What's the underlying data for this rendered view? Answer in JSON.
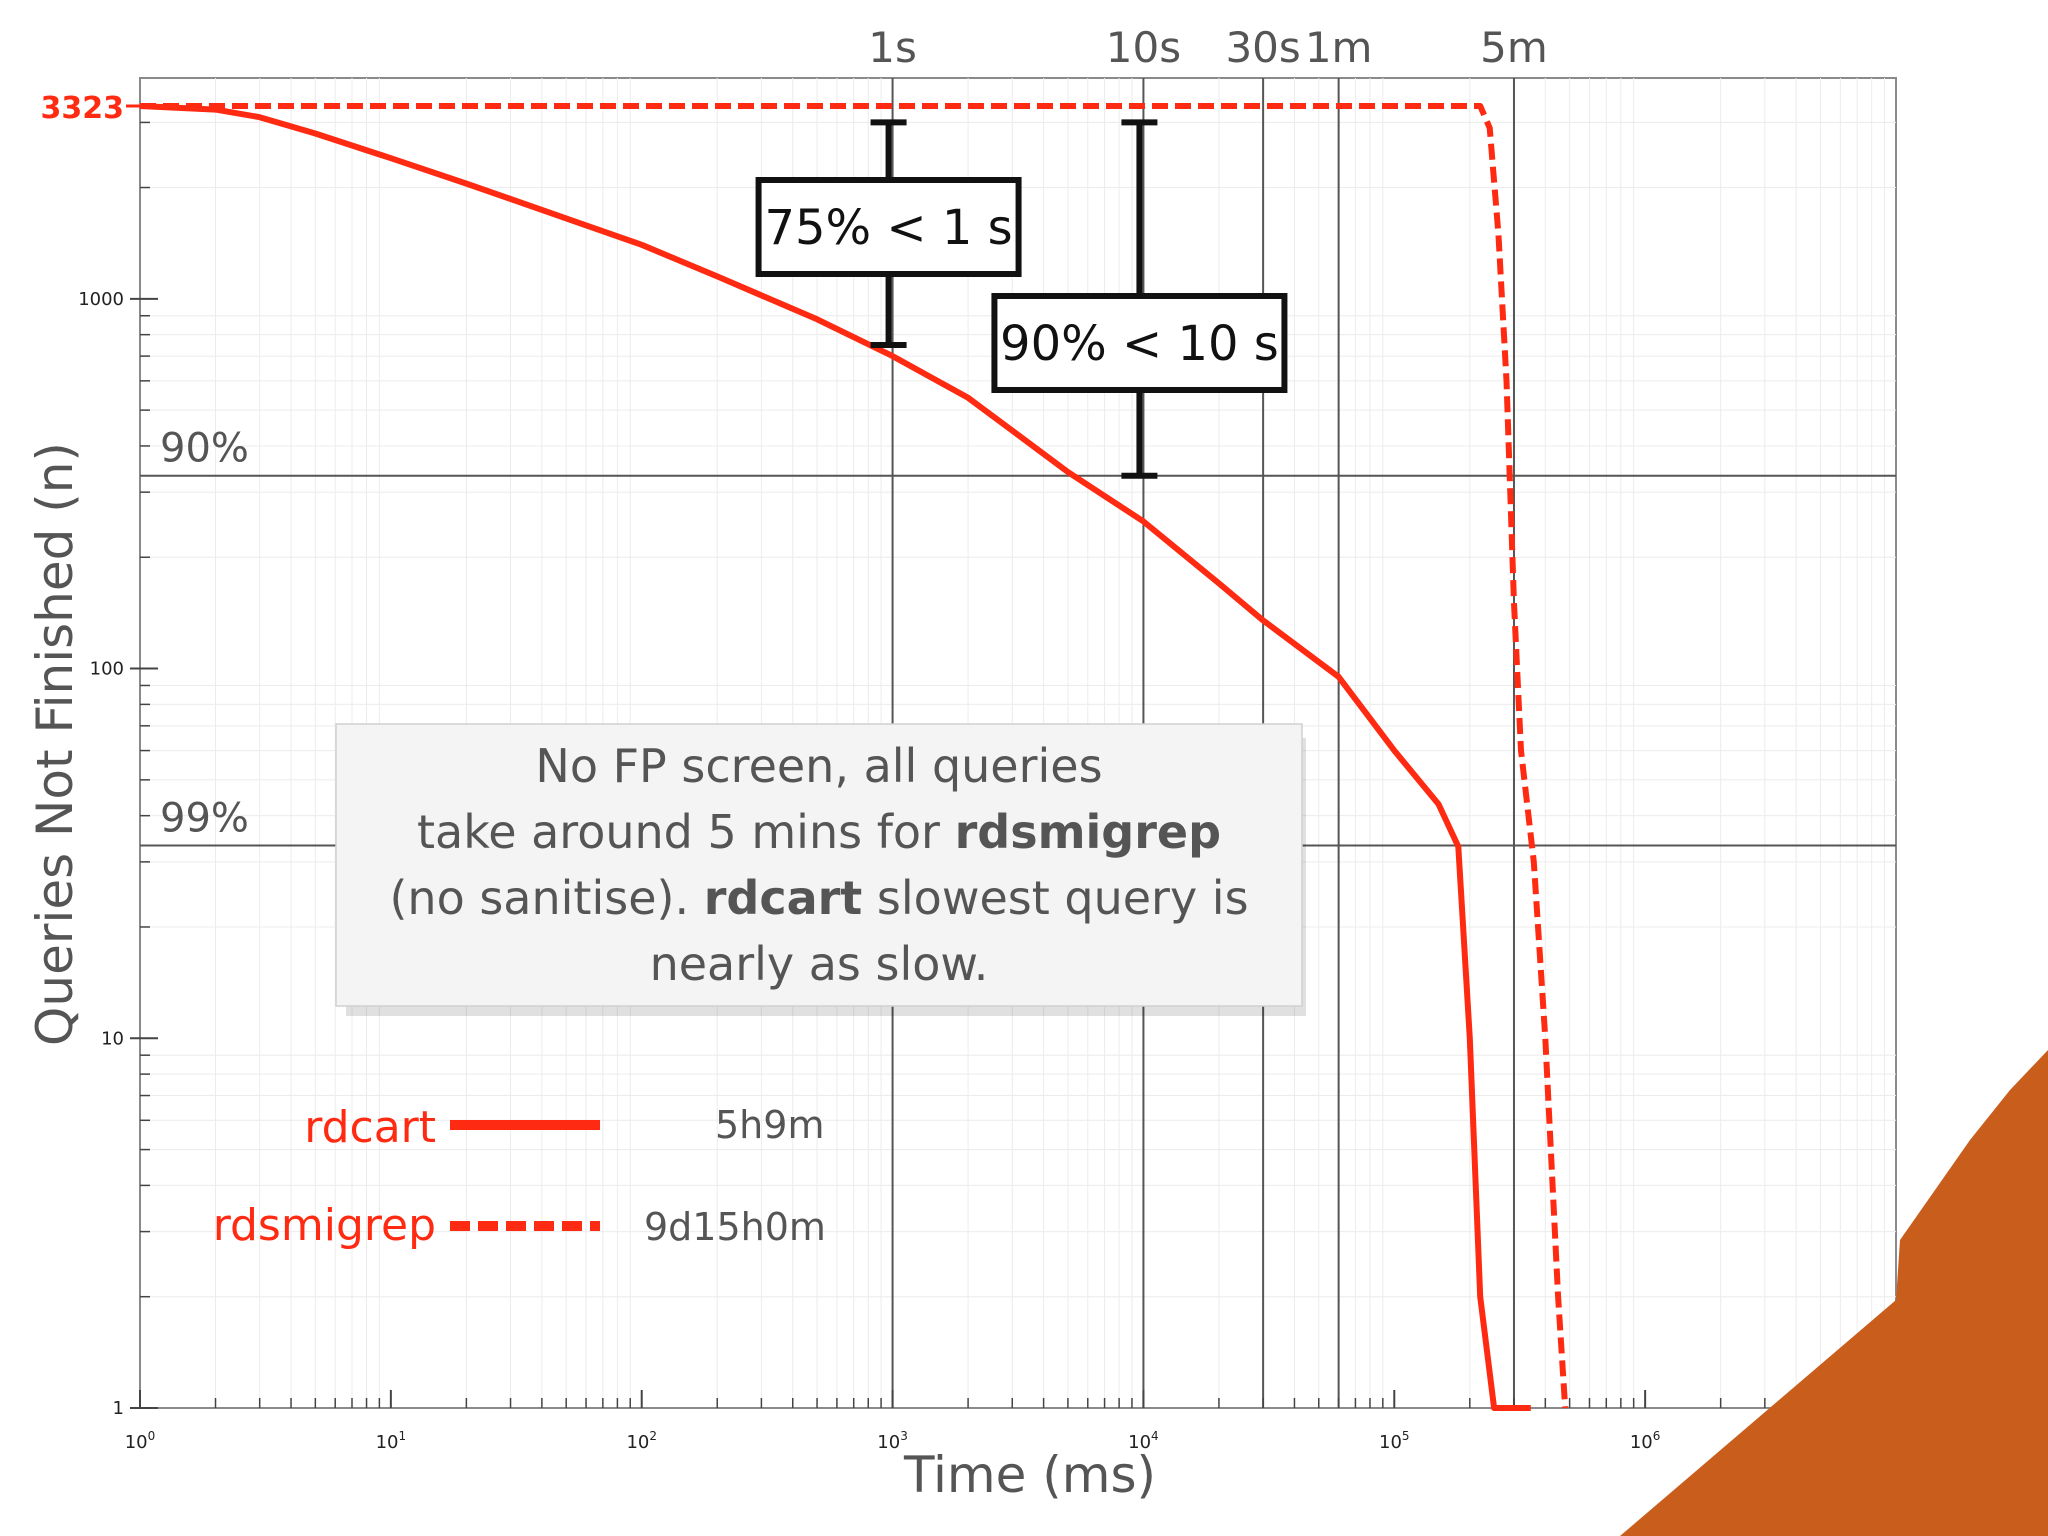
{
  "chart_data": {
    "type": "line",
    "xlabel": "Time (ms)",
    "ylabel": "Queries Not Finished (n)",
    "x_scale": "log",
    "y_scale": "log",
    "xlim": [
      1,
      10000000
    ],
    "ylim": [
      1,
      3323
    ],
    "x_ticks": [
      {
        "value": 1,
        "base": "10",
        "exp": "0"
      },
      {
        "value": 10,
        "base": "10",
        "exp": "1"
      },
      {
        "value": 100,
        "base": "10",
        "exp": "2"
      },
      {
        "value": 1000,
        "base": "10",
        "exp": "3"
      },
      {
        "value": 10000,
        "base": "10",
        "exp": "4"
      },
      {
        "value": 100000,
        "base": "10",
        "exp": "5"
      },
      {
        "value": 1000000,
        "base": "10",
        "exp": "6"
      },
      {
        "value": 10000000,
        "base": "10",
        "exp": "7"
      }
    ],
    "y_ticks": [
      {
        "value": 1,
        "label": "1"
      },
      {
        "value": 10,
        "label": "10"
      },
      {
        "value": 100,
        "label": "100"
      },
      {
        "value": 1000,
        "label": "1000"
      }
    ],
    "y_max_label": {
      "value": 3323,
      "label": "3323"
    },
    "time_markers": [
      {
        "value": 1000,
        "label": "1s"
      },
      {
        "value": 10000,
        "label": "10s"
      },
      {
        "value": 30000,
        "label": "30s"
      },
      {
        "value": 60000,
        "label": "1m"
      },
      {
        "value": 300000,
        "label": "5m"
      }
    ],
    "percentile_lines": [
      {
        "value": 332.3,
        "label": "90%"
      },
      {
        "value": 33.23,
        "label": "99%"
      }
    ],
    "series": [
      {
        "name": "rdcart",
        "style": "solid",
        "color": "#ff2a12",
        "total": "5h9m",
        "points": [
          [
            1,
            3323
          ],
          [
            2,
            3250
          ],
          [
            3,
            3100
          ],
          [
            5,
            2800
          ],
          [
            10,
            2400
          ],
          [
            20,
            2050
          ],
          [
            50,
            1650
          ],
          [
            100,
            1400
          ],
          [
            200,
            1150
          ],
          [
            500,
            880
          ],
          [
            1000,
            700
          ],
          [
            2000,
            540
          ],
          [
            3000,
            440
          ],
          [
            5000,
            340
          ],
          [
            10000,
            250
          ],
          [
            20000,
            170
          ],
          [
            30000,
            135
          ],
          [
            60000,
            95
          ],
          [
            100000,
            60
          ],
          [
            150000,
            43
          ],
          [
            180000,
            33
          ],
          [
            200000,
            10
          ],
          [
            220000,
            2
          ],
          [
            250000,
            1
          ],
          [
            350000,
            1
          ]
        ]
      },
      {
        "name": "rdsmigrep",
        "style": "dashed",
        "color": "#ff2a12",
        "total": "9d15h0m",
        "points": [
          [
            1,
            3323
          ],
          [
            220000,
            3323
          ],
          [
            240000,
            2900
          ],
          [
            260000,
            1500
          ],
          [
            280000,
            600
          ],
          [
            300000,
            150
          ],
          [
            320000,
            60
          ],
          [
            360000,
            30
          ],
          [
            400000,
            10
          ],
          [
            450000,
            2
          ],
          [
            480000,
            1
          ]
        ]
      }
    ],
    "annotations": [
      {
        "text": "75% < 1 s",
        "x": 1000,
        "y_range": [
          750,
          3000
        ]
      },
      {
        "text": "90% < 10 s",
        "x": 10000,
        "y_range": [
          332.3,
          3000
        ]
      }
    ]
  },
  "note_box": {
    "line1": "No FP screen, all queries",
    "line2_pre": "take around 5 mins for ",
    "line2_bold": "rdsmigrep",
    "line3_pre": "(no sanitise). ",
    "line3_bold": "rdcart",
    "line3_post": " slowest query is",
    "line4": "nearly as slow."
  },
  "colors": {
    "accent": "#ff2a12",
    "decoration": "#c95e1c",
    "grid": "#666666"
  }
}
